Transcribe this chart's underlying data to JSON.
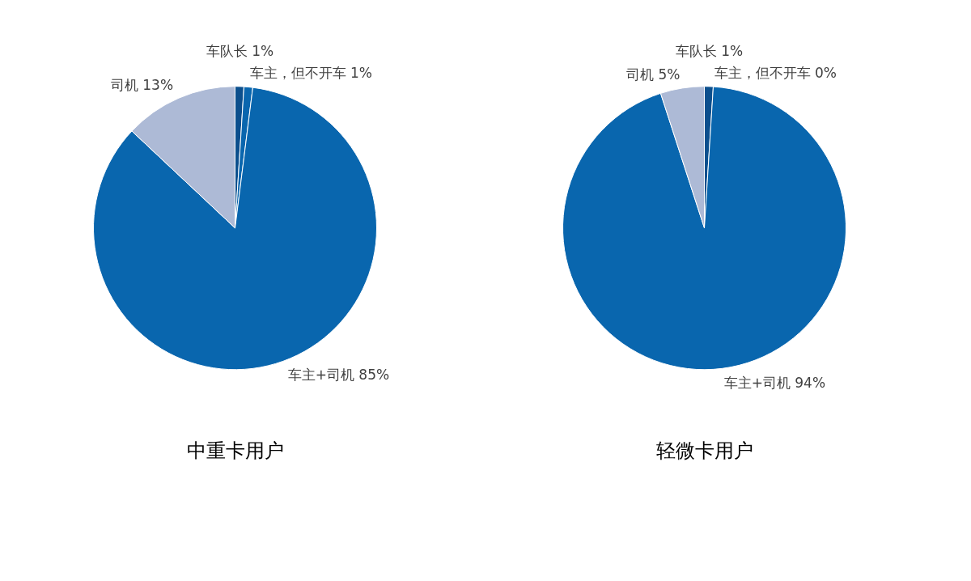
{
  "chart_data": [
    {
      "type": "pie",
      "title": "中重卡用户",
      "categories": [
        "车队长",
        "车主，但不开车",
        "车主+司机",
        "司机"
      ],
      "values": [
        1,
        1,
        85,
        13
      ],
      "value_labels": [
        "1%",
        "1%",
        "85%",
        "13%"
      ],
      "colors": [
        "#0b4f8d",
        "#0966ae",
        "#0966ae",
        "#adbad6"
      ],
      "legend": false
    },
    {
      "type": "pie",
      "title": "轻微卡用户",
      "categories": [
        "车队长",
        "车主，但不开车",
        "车主+司机",
        "司机"
      ],
      "values": [
        1,
        0,
        94,
        5
      ],
      "value_labels": [
        "1%",
        "0%",
        "94%",
        "5%"
      ],
      "colors": [
        "#0b4f8d",
        "#0966ae",
        "#0966ae",
        "#adbad6"
      ],
      "legend": false
    }
  ]
}
